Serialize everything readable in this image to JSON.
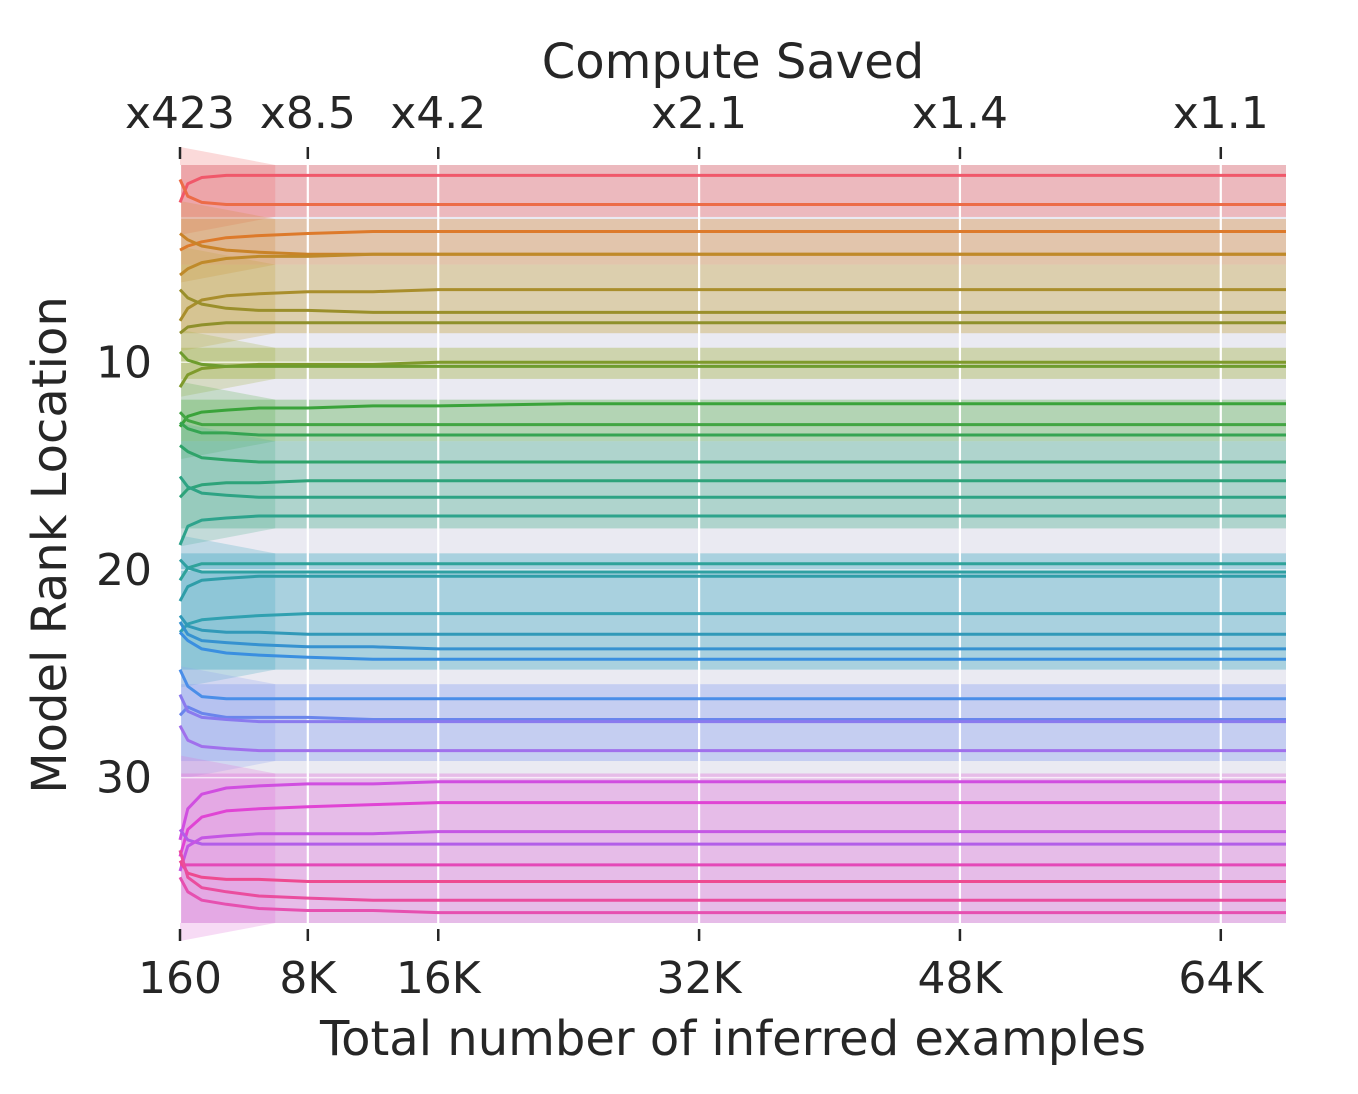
{
  "chart_data": {
    "type": "line",
    "title": "",
    "xlabel": "Total number of inferred examples",
    "ylabel": "Model Rank Location",
    "top_axis_label": "Compute Saved",
    "xlim": [
      160,
      68000
    ],
    "ylim": [
      37,
      0.5
    ],
    "y_inverted": true,
    "grid": true,
    "x_ticks": [
      {
        "value": 160,
        "label": "160"
      },
      {
        "value": 8000,
        "label": "8K"
      },
      {
        "value": 16000,
        "label": "16K"
      },
      {
        "value": 32000,
        "label": "32K"
      },
      {
        "value": 48000,
        "label": "48K"
      },
      {
        "value": 64000,
        "label": "64K"
      }
    ],
    "top_ticks": [
      {
        "value": 160,
        "label": "x423"
      },
      {
        "value": 8000,
        "label": "x8.5"
      },
      {
        "value": 16000,
        "label": "x4.2"
      },
      {
        "value": 32000,
        "label": "x2.1"
      },
      {
        "value": 48000,
        "label": "x1.4"
      },
      {
        "value": 64000,
        "label": "x1.1"
      }
    ],
    "y_ticks": [
      {
        "value": 10,
        "label": "10"
      },
      {
        "value": 20,
        "label": "20"
      },
      {
        "value": 30,
        "label": "30"
      }
    ],
    "x": [
      160,
      640,
      1500,
      3000,
      5000,
      8000,
      12000,
      16000,
      24000,
      32000,
      48000,
      64000,
      68000
    ],
    "series": [
      {
        "values": [
          2.3,
          1.4,
          1.1,
          1.0,
          1.0,
          1.0,
          1.0,
          1.0,
          1.0,
          1.0,
          1.0,
          1.0,
          1.0
        ],
        "color": "#f0586a"
      },
      {
        "values": [
          1.2,
          2.0,
          2.3,
          2.4,
          2.4,
          2.4,
          2.4,
          2.4,
          2.4,
          2.4,
          2.4,
          2.4,
          2.4
        ],
        "color": "#ec6c48"
      },
      {
        "values": [
          4.6,
          4.4,
          4.2,
          4.0,
          3.9,
          3.8,
          3.7,
          3.7,
          3.7,
          3.7,
          3.7,
          3.7,
          3.7
        ],
        "color": "#dd7a2b"
      },
      {
        "values": [
          3.8,
          4.1,
          4.4,
          4.6,
          4.7,
          4.8,
          4.8,
          4.8,
          4.8,
          4.8,
          4.8,
          4.8,
          4.8
        ],
        "color": "#c98328"
      },
      {
        "values": [
          5.8,
          5.5,
          5.2,
          5.0,
          4.9,
          4.9,
          4.8,
          4.8,
          4.8,
          4.8,
          4.8,
          4.8,
          4.8
        ],
        "color": "#bf8a2a"
      },
      {
        "values": [
          8.0,
          7.4,
          7.0,
          6.8,
          6.7,
          6.6,
          6.6,
          6.5,
          6.5,
          6.5,
          6.5,
          6.5,
          6.5
        ],
        "color": "#a98e2c"
      },
      {
        "values": [
          6.5,
          6.9,
          7.2,
          7.4,
          7.5,
          7.5,
          7.6,
          7.6,
          7.6,
          7.6,
          7.6,
          7.6,
          7.6
        ],
        "color": "#9a8f2b"
      },
      {
        "values": [
          8.6,
          8.3,
          8.2,
          8.1,
          8.1,
          8.1,
          8.1,
          8.1,
          8.1,
          8.1,
          8.1,
          8.1,
          8.1
        ],
        "color": "#8f902b"
      },
      {
        "values": [
          11.2,
          10.6,
          10.3,
          10.2,
          10.1,
          10.1,
          10.1,
          10.0,
          10.0,
          10.0,
          10.0,
          10.0,
          10.0
        ],
        "color": "#7f9a2c"
      },
      {
        "values": [
          9.5,
          9.9,
          10.1,
          10.2,
          10.2,
          10.2,
          10.2,
          10.2,
          10.2,
          10.2,
          10.2,
          10.2,
          10.2
        ],
        "color": "#6e9c2e"
      },
      {
        "values": [
          13.1,
          12.6,
          12.4,
          12.3,
          12.2,
          12.2,
          12.1,
          12.1,
          12.0,
          12.0,
          12.0,
          12.0,
          12.0
        ],
        "color": "#3aa33a"
      },
      {
        "values": [
          12.4,
          12.8,
          13.0,
          13.0,
          13.0,
          13.0,
          13.0,
          13.0,
          13.0,
          13.0,
          13.0,
          13.0,
          13.0
        ],
        "color": "#43a543"
      },
      {
        "values": [
          12.9,
          13.2,
          13.4,
          13.4,
          13.5,
          13.5,
          13.5,
          13.5,
          13.5,
          13.5,
          13.5,
          13.5,
          13.5
        ],
        "color": "#35a452"
      },
      {
        "values": [
          14.0,
          14.3,
          14.6,
          14.7,
          14.8,
          14.8,
          14.8,
          14.8,
          14.8,
          14.8,
          14.8,
          14.8,
          14.8
        ],
        "color": "#2fa36a"
      },
      {
        "values": [
          16.5,
          16.1,
          15.9,
          15.8,
          15.8,
          15.7,
          15.7,
          15.7,
          15.7,
          15.7,
          15.7,
          15.7,
          15.7
        ],
        "color": "#2ea37a"
      },
      {
        "values": [
          15.5,
          16.0,
          16.3,
          16.4,
          16.5,
          16.5,
          16.5,
          16.5,
          16.5,
          16.5,
          16.5,
          16.5,
          16.5
        ],
        "color": "#2ea384"
      },
      {
        "values": [
          18.8,
          17.9,
          17.6,
          17.5,
          17.4,
          17.4,
          17.4,
          17.4,
          17.4,
          17.4,
          17.4,
          17.4,
          17.4
        ],
        "color": "#2ea38c"
      },
      {
        "values": [
          20.5,
          19.9,
          19.7,
          19.7,
          19.7,
          19.7,
          19.7,
          19.7,
          19.7,
          19.7,
          19.7,
          19.7,
          19.7
        ],
        "color": "#2fa29a"
      },
      {
        "values": [
          19.5,
          19.9,
          20.1,
          20.1,
          20.1,
          20.1,
          20.1,
          20.1,
          20.1,
          20.1,
          20.1,
          20.1,
          20.1
        ],
        "color": "#2fa0a2"
      },
      {
        "values": [
          21.5,
          20.8,
          20.5,
          20.4,
          20.3,
          20.3,
          20.3,
          20.3,
          20.3,
          20.3,
          20.3,
          20.3,
          20.3
        ],
        "color": "#2f9da8"
      },
      {
        "values": [
          23.0,
          22.6,
          22.4,
          22.3,
          22.2,
          22.1,
          22.1,
          22.1,
          22.1,
          22.1,
          22.1,
          22.1,
          22.1
        ],
        "color": "#30a0b0"
      },
      {
        "values": [
          22.2,
          22.7,
          22.9,
          23.0,
          23.0,
          23.1,
          23.1,
          23.1,
          23.1,
          23.1,
          23.1,
          23.1,
          23.1
        ],
        "color": "#3199b8"
      },
      {
        "values": [
          22.5,
          23.1,
          23.4,
          23.5,
          23.6,
          23.7,
          23.7,
          23.8,
          23.8,
          23.8,
          23.8,
          23.8,
          23.8
        ],
        "color": "#3692d0"
      },
      {
        "values": [
          23.0,
          23.4,
          23.8,
          24.0,
          24.1,
          24.2,
          24.3,
          24.3,
          24.3,
          24.3,
          24.3,
          24.3,
          24.3
        ],
        "color": "#3a8fe0"
      },
      {
        "values": [
          24.8,
          25.6,
          26.1,
          26.2,
          26.2,
          26.2,
          26.2,
          26.2,
          26.2,
          26.2,
          26.2,
          26.2,
          26.2
        ],
        "color": "#4a8ee8"
      },
      {
        "values": [
          27.0,
          26.6,
          26.9,
          27.1,
          27.1,
          27.1,
          27.2,
          27.2,
          27.2,
          27.2,
          27.2,
          27.2,
          27.2
        ],
        "color": "#6a85ec"
      },
      {
        "values": [
          26.0,
          26.8,
          27.1,
          27.2,
          27.3,
          27.3,
          27.3,
          27.3,
          27.3,
          27.3,
          27.3,
          27.3,
          27.3
        ],
        "color": "#8a7aee"
      },
      {
        "values": [
          27.5,
          28.2,
          28.5,
          28.6,
          28.7,
          28.7,
          28.7,
          28.7,
          28.7,
          28.7,
          28.7,
          28.7,
          28.7
        ],
        "color": "#a070ec"
      },
      {
        "values": [
          33.0,
          31.5,
          30.8,
          30.5,
          30.4,
          30.3,
          30.3,
          30.2,
          30.2,
          30.2,
          30.2,
          30.2,
          30.2
        ],
        "color": "#d04ee0"
      },
      {
        "values": [
          33.8,
          32.5,
          31.9,
          31.6,
          31.5,
          31.4,
          31.3,
          31.2,
          31.2,
          31.2,
          31.2,
          31.2,
          31.2
        ],
        "color": "#e044d4"
      },
      {
        "values": [
          32.5,
          33.0,
          33.2,
          33.2,
          33.2,
          33.2,
          33.2,
          33.2,
          33.2,
          33.2,
          33.2,
          33.2,
          33.2
        ],
        "color": "#b25ee8"
      },
      {
        "values": [
          34.5,
          33.3,
          32.9,
          32.8,
          32.7,
          32.7,
          32.7,
          32.6,
          32.6,
          32.6,
          32.6,
          32.6,
          32.6
        ],
        "color": "#c456e4"
      },
      {
        "values": [
          34.2,
          34.2,
          34.2,
          34.2,
          34.2,
          34.2,
          34.2,
          34.2,
          34.2,
          34.2,
          34.2,
          34.2,
          34.2
        ],
        "color": "#e448b8"
      },
      {
        "values": [
          34.0,
          34.6,
          34.8,
          34.9,
          34.9,
          35.0,
          35.0,
          35.0,
          35.0,
          35.0,
          35.0,
          35.0,
          35.0
        ],
        "color": "#ee4a90"
      },
      {
        "values": [
          33.5,
          34.8,
          35.3,
          35.5,
          35.7,
          35.8,
          35.9,
          35.9,
          35.9,
          35.9,
          35.9,
          35.9,
          35.9
        ],
        "color": "#ea4d9e"
      },
      {
        "values": [
          34.8,
          35.5,
          35.9,
          36.1,
          36.3,
          36.4,
          36.4,
          36.5,
          36.5,
          36.5,
          36.5,
          36.5,
          36.5
        ],
        "color": "#e650b0"
      }
    ],
    "bands": [
      {
        "y0": 0.5,
        "y1": 3.0,
        "color": "#f06a6a"
      },
      {
        "y0": 3.1,
        "y1": 5.3,
        "color": "#d48a3a"
      },
      {
        "y0": 5.3,
        "y1": 8.6,
        "color": "#c4a440"
      },
      {
        "y0": 9.3,
        "y1": 10.8,
        "color": "#a0b040"
      },
      {
        "y0": 11.8,
        "y1": 13.8,
        "color": "#5ab050"
      },
      {
        "y0": 13.8,
        "y1": 18.0,
        "color": "#50b090"
      },
      {
        "y0": 19.2,
        "y1": 24.8,
        "color": "#40a8c0"
      },
      {
        "y0": 25.5,
        "y1": 29.2,
        "color": "#8aa0f0"
      },
      {
        "y0": 29.8,
        "y1": 37.0,
        "color": "#e070d8"
      }
    ]
  }
}
